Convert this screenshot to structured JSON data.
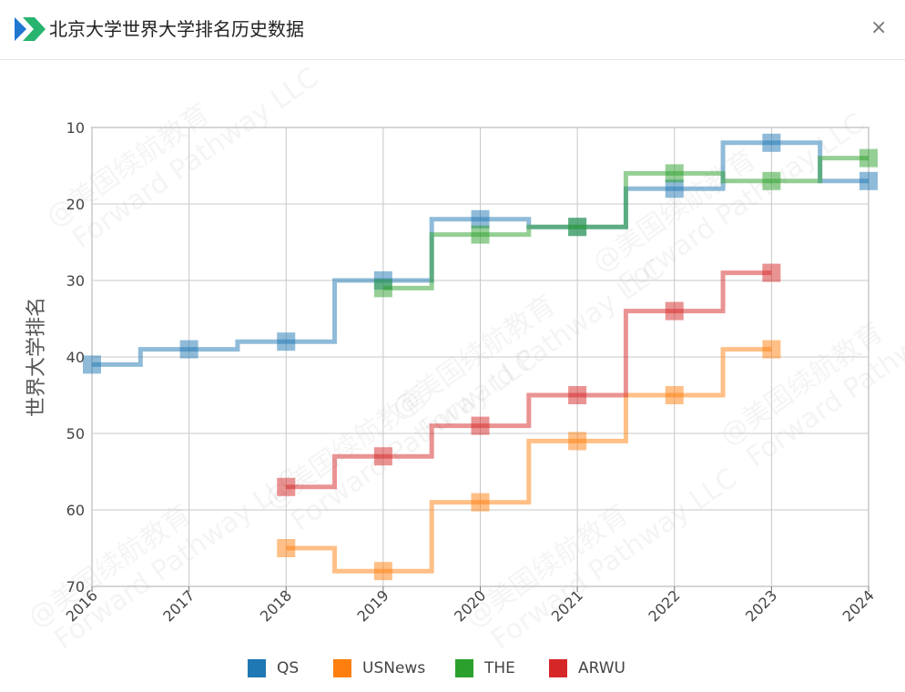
{
  "window": {
    "title": "北京大学世界大学排名历史数据",
    "close_label": "×"
  },
  "watermark": {
    "line1": "@美国续航教育",
    "line2": "Forward Pathway LLC"
  },
  "chart_data": {
    "type": "line",
    "step": true,
    "title": "",
    "xlabel": "",
    "ylabel": "世界大学排名",
    "x": [
      "2016",
      "2017",
      "2018",
      "2019",
      "2020",
      "2021",
      "2022",
      "2023",
      "2024"
    ],
    "ylim": [
      10,
      70
    ],
    "y_inverted": true,
    "yticks": [
      10,
      20,
      30,
      40,
      50,
      60,
      70
    ],
    "grid": true,
    "legend_position": "bottom",
    "series": [
      {
        "name": "QS",
        "color": "#1f77b4",
        "values": [
          41,
          39,
          38,
          30,
          22,
          23,
          18,
          12,
          17
        ]
      },
      {
        "name": "USNews",
        "color": "#ff7f0e",
        "values": [
          null,
          null,
          65,
          68,
          59,
          51,
          45,
          39,
          null
        ]
      },
      {
        "name": "THE",
        "color": "#2ca02c",
        "values": [
          null,
          null,
          null,
          31,
          24,
          23,
          16,
          17,
          14
        ]
      },
      {
        "name": "ARWU",
        "color": "#d62728",
        "values": [
          null,
          null,
          57,
          53,
          49,
          45,
          34,
          29,
          null
        ]
      }
    ]
  }
}
